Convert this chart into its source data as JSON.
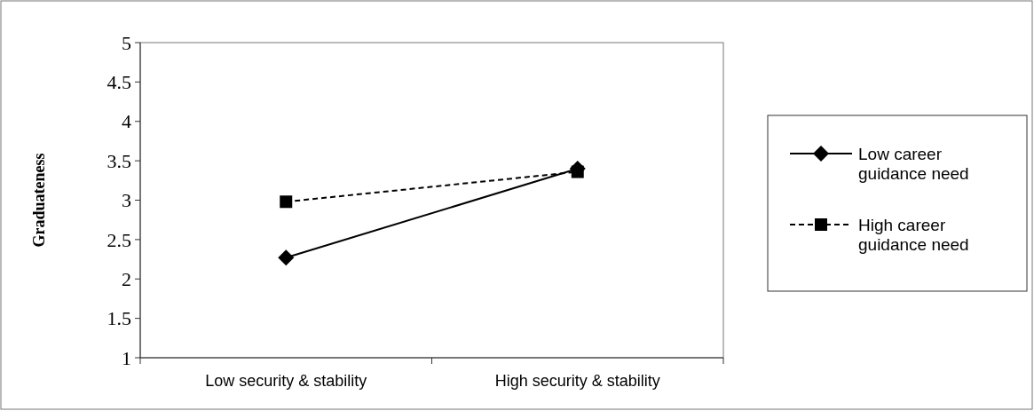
{
  "chart_data": {
    "type": "line",
    "ylabel": "Graduateness",
    "categories": [
      "Low security & stability",
      "High security & stability"
    ],
    "series": [
      {
        "name": "Low career guidance need",
        "color": "#000000",
        "values": [
          2.27,
          3.4
        ],
        "marker": "diamond",
        "line_style": "solid"
      },
      {
        "name": "High career guidance need",
        "color": "#000000",
        "values": [
          2.98,
          3.36
        ],
        "marker": "square",
        "line_style": "dashed"
      }
    ],
    "ylim": [
      1,
      5
    ],
    "yticks": [
      1,
      1.5,
      2,
      2.5,
      3,
      3.5,
      4,
      4.5,
      5
    ],
    "grid": false,
    "legend": "right"
  }
}
